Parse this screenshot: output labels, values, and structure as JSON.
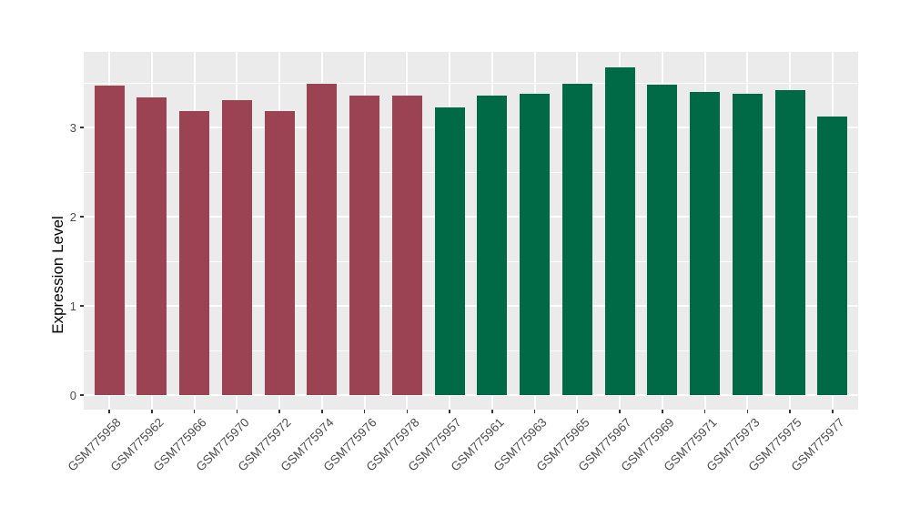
{
  "figure": {
    "background": "#FFFFFF",
    "panel_background": "#EBEBEB",
    "grid_color": "#FFFFFF",
    "tick_mark_color": "#333333",
    "tick_label_color": "#4D4D4D",
    "axis_title_color": "#000000"
  },
  "chart_data": {
    "type": "bar",
    "title": "",
    "xlabel": "",
    "ylabel": "Expression Level",
    "ylim": [
      0,
      3.86
    ],
    "yticks": [
      0,
      1,
      2,
      3
    ],
    "y_minor_gridlines": [
      0.5,
      1.5,
      2.5,
      3.5
    ],
    "grid": true,
    "legend_position": "none",
    "categories": [
      "GSM775958",
      "GSM775962",
      "GSM775966",
      "GSM775970",
      "GSM775972",
      "GSM775974",
      "GSM775976",
      "GSM775978",
      "GSM775957",
      "GSM775961",
      "GSM775963",
      "GSM775965",
      "GSM775967",
      "GSM775969",
      "GSM775971",
      "GSM775973",
      "GSM775975",
      "GSM775977"
    ],
    "values": [
      3.47,
      3.34,
      3.18,
      3.31,
      3.18,
      3.49,
      3.36,
      3.36,
      3.22,
      3.36,
      3.38,
      3.49,
      3.67,
      3.48,
      3.4,
      3.38,
      3.42,
      3.12
    ],
    "bar_colors": [
      "#9B4352",
      "#9B4352",
      "#9B4352",
      "#9B4352",
      "#9B4352",
      "#9B4352",
      "#9B4352",
      "#9B4352",
      "#006946",
      "#006946",
      "#006946",
      "#006946",
      "#006946",
      "#006946",
      "#006946",
      "#006946",
      "#006946",
      "#006946"
    ],
    "group_colors": [
      "#9B4352",
      "#006946"
    ]
  }
}
